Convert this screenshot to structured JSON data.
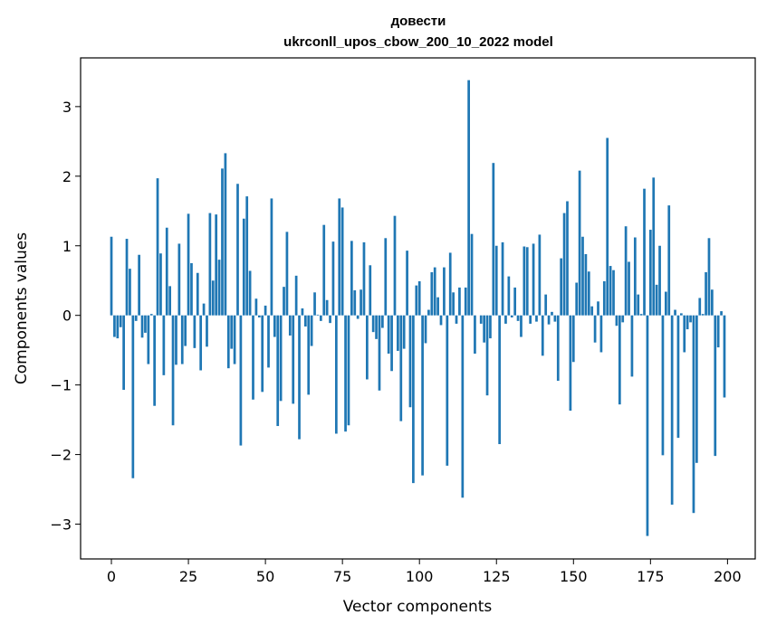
{
  "chart_data": {
    "type": "bar",
    "title_line1": "довести",
    "title_line2": "ukrconll_upos_cbow_200_10_2022 model",
    "xlabel": "Vector components",
    "ylabel": "Components values",
    "xlim": [
      -10,
      209
    ],
    "ylim": [
      -3.5,
      3.7
    ],
    "xticks": [
      0,
      25,
      50,
      75,
      100,
      125,
      150,
      175,
      200
    ],
    "xtick_labels": [
      "0",
      "25",
      "50",
      "75",
      "100",
      "125",
      "150",
      "175",
      "200"
    ],
    "yticks": [
      -3,
      -2,
      -1,
      0,
      1,
      2,
      3
    ],
    "ytick_labels": [
      "−3",
      "−2",
      "−1",
      "0",
      "1",
      "2",
      "3"
    ],
    "bar_color": "#1f77b4",
    "grid": false,
    "values": [
      1.13,
      -0.31,
      -0.33,
      -0.17,
      -1.07,
      1.1,
      0.67,
      -2.34,
      -0.08,
      0.87,
      -0.32,
      -0.25,
      -0.7,
      0.02,
      -1.3,
      1.97,
      0.89,
      -0.86,
      1.26,
      0.42,
      -1.58,
      -0.71,
      1.03,
      -0.7,
      -0.44,
      1.46,
      0.75,
      -0.47,
      0.61,
      -0.79,
      0.17,
      -0.45,
      1.47,
      0.5,
      1.45,
      0.8,
      2.11,
      2.33,
      -0.76,
      -0.48,
      -0.7,
      1.89,
      -1.87,
      1.39,
      1.71,
      0.64,
      -1.21,
      0.24,
      -0.03,
      -1.1,
      0.14,
      -0.75,
      1.68,
      -0.31,
      -1.59,
      -1.23,
      0.41,
      1.2,
      -0.29,
      -1.27,
      0.57,
      -1.78,
      0.1,
      -0.16,
      -1.14,
      -0.44,
      0.33,
      0.01,
      -0.08,
      1.3,
      0.22,
      -0.11,
      1.06,
      -1.7,
      1.68,
      1.55,
      -1.67,
      -1.58,
      1.07,
      0.36,
      -0.05,
      0.37,
      1.05,
      -0.92,
      0.72,
      -0.24,
      -0.34,
      -1.08,
      -0.18,
      1.11,
      -0.55,
      -0.8,
      1.43,
      -0.51,
      -1.52,
      -0.48,
      0.93,
      -1.32,
      -2.41,
      0.43,
      0.49,
      -2.3,
      -0.4,
      0.08,
      0.62,
      0.69,
      0.26,
      -0.14,
      0.69,
      -2.16,
      0.9,
      0.33,
      -0.12,
      0.4,
      -2.62,
      0.4,
      3.38,
      1.17,
      -0.55,
      0.0,
      -0.12,
      -0.39,
      -1.15,
      -0.33,
      2.19,
      1.0,
      -1.85,
      1.05,
      -0.12,
      0.56,
      -0.03,
      0.4,
      -0.08,
      -0.31,
      0.99,
      0.98,
      -0.12,
      1.03,
      -0.09,
      1.16,
      -0.58,
      0.3,
      -0.13,
      0.05,
      -0.09,
      -0.94,
      0.82,
      1.47,
      1.64,
      -1.37,
      -0.67,
      0.47,
      2.08,
      1.13,
      0.88,
      0.63,
      0.13,
      -0.39,
      0.2,
      -0.53,
      0.49,
      2.55,
      0.71,
      0.65,
      -0.15,
      -1.28,
      -0.1,
      1.28,
      0.77,
      -0.88,
      1.12,
      0.3,
      0.02,
      1.82,
      -3.17,
      1.23,
      1.98,
      0.44,
      1.0,
      -2.01,
      0.34,
      1.58,
      -2.72,
      0.08,
      -1.76,
      0.03,
      -0.53,
      -0.2,
      -0.1,
      -2.84,
      -2.12,
      0.25,
      0.02,
      0.62,
      1.11,
      0.37,
      -2.02,
      -0.46,
      0.06,
      -1.18
    ]
  }
}
